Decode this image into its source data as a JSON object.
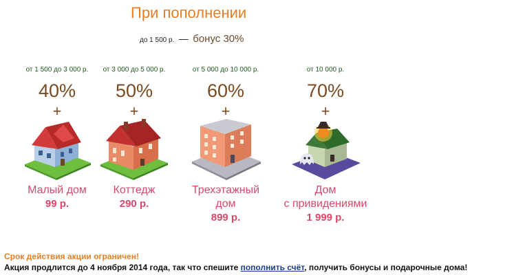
{
  "header": {
    "title": "При пополнении",
    "base_amount": "до 1 500 р.",
    "dash": "—",
    "base_bonus": "бонус 30%"
  },
  "tiers": [
    {
      "range": "от 1 500 до 3 000 р.",
      "percent": "40%",
      "plus": "+",
      "name_line1": "Малый дом",
      "name_line2": "",
      "price": "99 р.",
      "icon": "small-house-icon"
    },
    {
      "range": "от 3 000 до 5 000 р.",
      "percent": "50%",
      "plus": "+",
      "name_line1": "Коттедж",
      "name_line2": "",
      "price": "290 р.",
      "icon": "cottage-icon"
    },
    {
      "range": "от 5 000 до 10 000 р.",
      "percent": "60%",
      "plus": "+",
      "name_line1": "Трехэтажный",
      "name_line2": "дом",
      "price": "899 р.",
      "icon": "three-storey-house-icon"
    },
    {
      "range": "от 10 000 р.",
      "percent": "70%",
      "plus": "+",
      "name_line1": "Дом",
      "name_line2": "с привидениями",
      "price": "1 999 р.",
      "icon": "haunted-house-icon"
    }
  ],
  "footer": {
    "warning": "Срок действия акции ограничен!",
    "text_before": "Акция продлится до 4 ноября 2014 года, так что спешите ",
    "link": "пополнить счёт",
    "text_after": ", получить бонусы и подарочные дома!"
  },
  "colors": {
    "accent_orange": "#e67e22",
    "price_pink": "#d9486a",
    "percent_brown": "#7a4a22",
    "range_green": "#1f5a1f"
  }
}
